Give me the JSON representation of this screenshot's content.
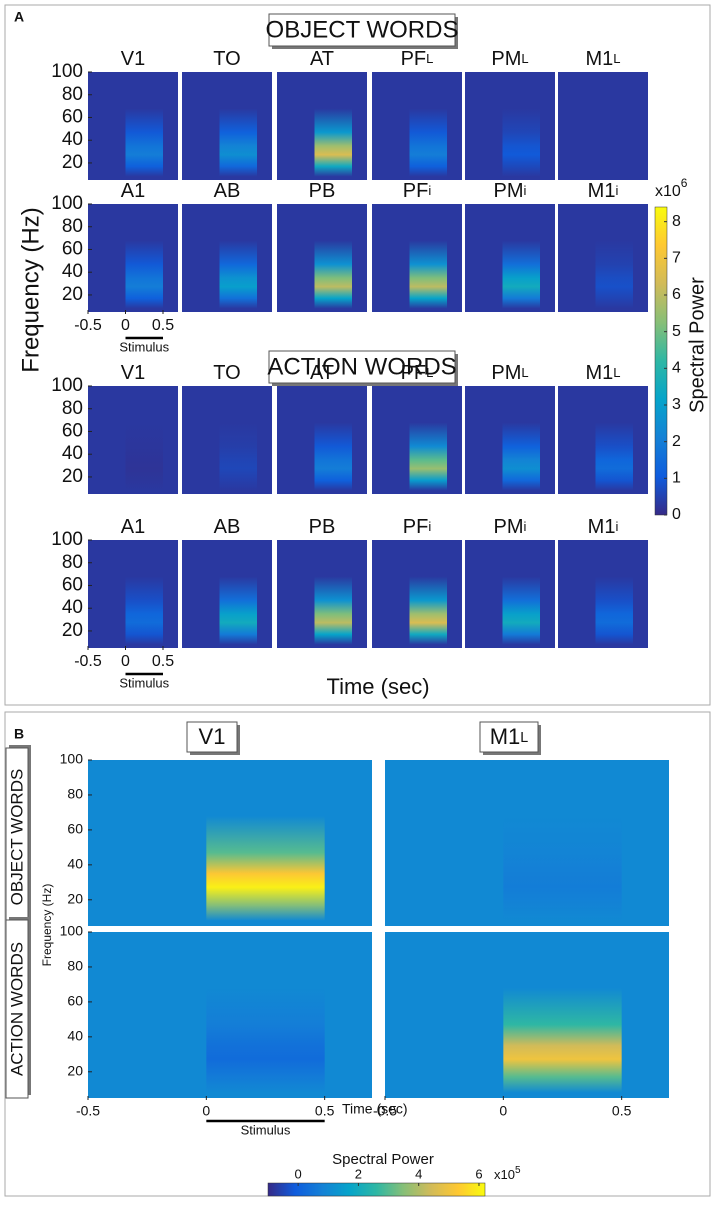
{
  "panel_a": {
    "label": "A",
    "ylabel": "Frequency (Hz)",
    "xlabel": "Time (sec)",
    "stimulus": "Stimulus",
    "ylim": [
      5,
      100
    ],
    "yticks": [
      20,
      40,
      60,
      80,
      100
    ],
    "xlim": [
      -0.5,
      0.7
    ],
    "xticks": [
      -0.5,
      0,
      0.5
    ],
    "stim": [
      0,
      0.5
    ],
    "background": 0.3,
    "groups": [
      {
        "title": "OBJECT WORDS",
        "rows": [
          [
            {
              "name": "V1",
              "peak": 2
            },
            {
              "name": "TO",
              "peak": 2.5
            },
            {
              "name": "AT",
              "peak": 6.5
            },
            {
              "name": "PF",
              "sub": "L",
              "peak": 2
            },
            {
              "name": "PM",
              "sub": "L",
              "peak": 1
            },
            {
              "name": "M1",
              "sub": "L",
              "peak": 0.3
            }
          ],
          [
            {
              "name": "A1",
              "peak": 2
            },
            {
              "name": "AB",
              "peak": 3
            },
            {
              "name": "PB",
              "peak": 6
            },
            {
              "name": "PF",
              "sub": "i",
              "peak": 6
            },
            {
              "name": "PM",
              "sub": "i",
              "peak": 3.5
            },
            {
              "name": "M1",
              "sub": "i",
              "peak": 0.8
            }
          ]
        ]
      },
      {
        "title": "ACTION WORDS",
        "rows": [
          [
            {
              "name": "V1",
              "peak": 0.2
            },
            {
              "name": "TO",
              "peak": 0.6
            },
            {
              "name": "AT",
              "peak": 2
            },
            {
              "name": "PF",
              "sub": "L",
              "peak": 5.5
            },
            {
              "name": "PM",
              "sub": "L",
              "peak": 2.5
            },
            {
              "name": "M1",
              "sub": "L",
              "peak": 1.5
            }
          ],
          [
            {
              "name": "A1",
              "peak": 1.5
            },
            {
              "name": "AB",
              "peak": 3.5
            },
            {
              "name": "PB",
              "peak": 6
            },
            {
              "name": "PF",
              "sub": "i",
              "peak": 6.5
            },
            {
              "name": "PM",
              "sub": "i",
              "peak": 3.5
            },
            {
              "name": "M1",
              "sub": "i",
              "peak": 1.5
            }
          ]
        ]
      }
    ],
    "colorbar": {
      "label": "Spectral Power",
      "multiplier": "x10",
      "exponent": "6",
      "lim": [
        0,
        8.4
      ],
      "ticks": [
        0,
        1,
        2,
        3,
        4,
        5,
        6,
        7,
        8
      ]
    }
  },
  "panel_b": {
    "label": "B",
    "ylabel": "Frequency (Hz)",
    "xlabel": "Time (sec)",
    "stimulus": "Stimulus",
    "ylim": [
      5,
      100
    ],
    "yticks": [
      20,
      40,
      60,
      80,
      100
    ],
    "xlim": [
      -0.5,
      0.7
    ],
    "xticks": [
      -0.5,
      0,
      0.5
    ],
    "stim": [
      0,
      0.5
    ],
    "background": 1,
    "columns": [
      {
        "name": "V1"
      },
      {
        "name": "M1",
        "sub": "L"
      }
    ],
    "rows": [
      {
        "title": "OBJECT WORDS",
        "peaks": [
          6,
          0.7
        ]
      },
      {
        "title": "ACTION WORDS",
        "peaks": [
          0.3,
          5
        ]
      }
    ],
    "colorbar": {
      "label": "Spectral Power",
      "multiplier": "x10",
      "exponent": "5",
      "lim": [
        -1,
        6.2
      ],
      "ticks": [
        0,
        2,
        4,
        6
      ]
    }
  }
}
